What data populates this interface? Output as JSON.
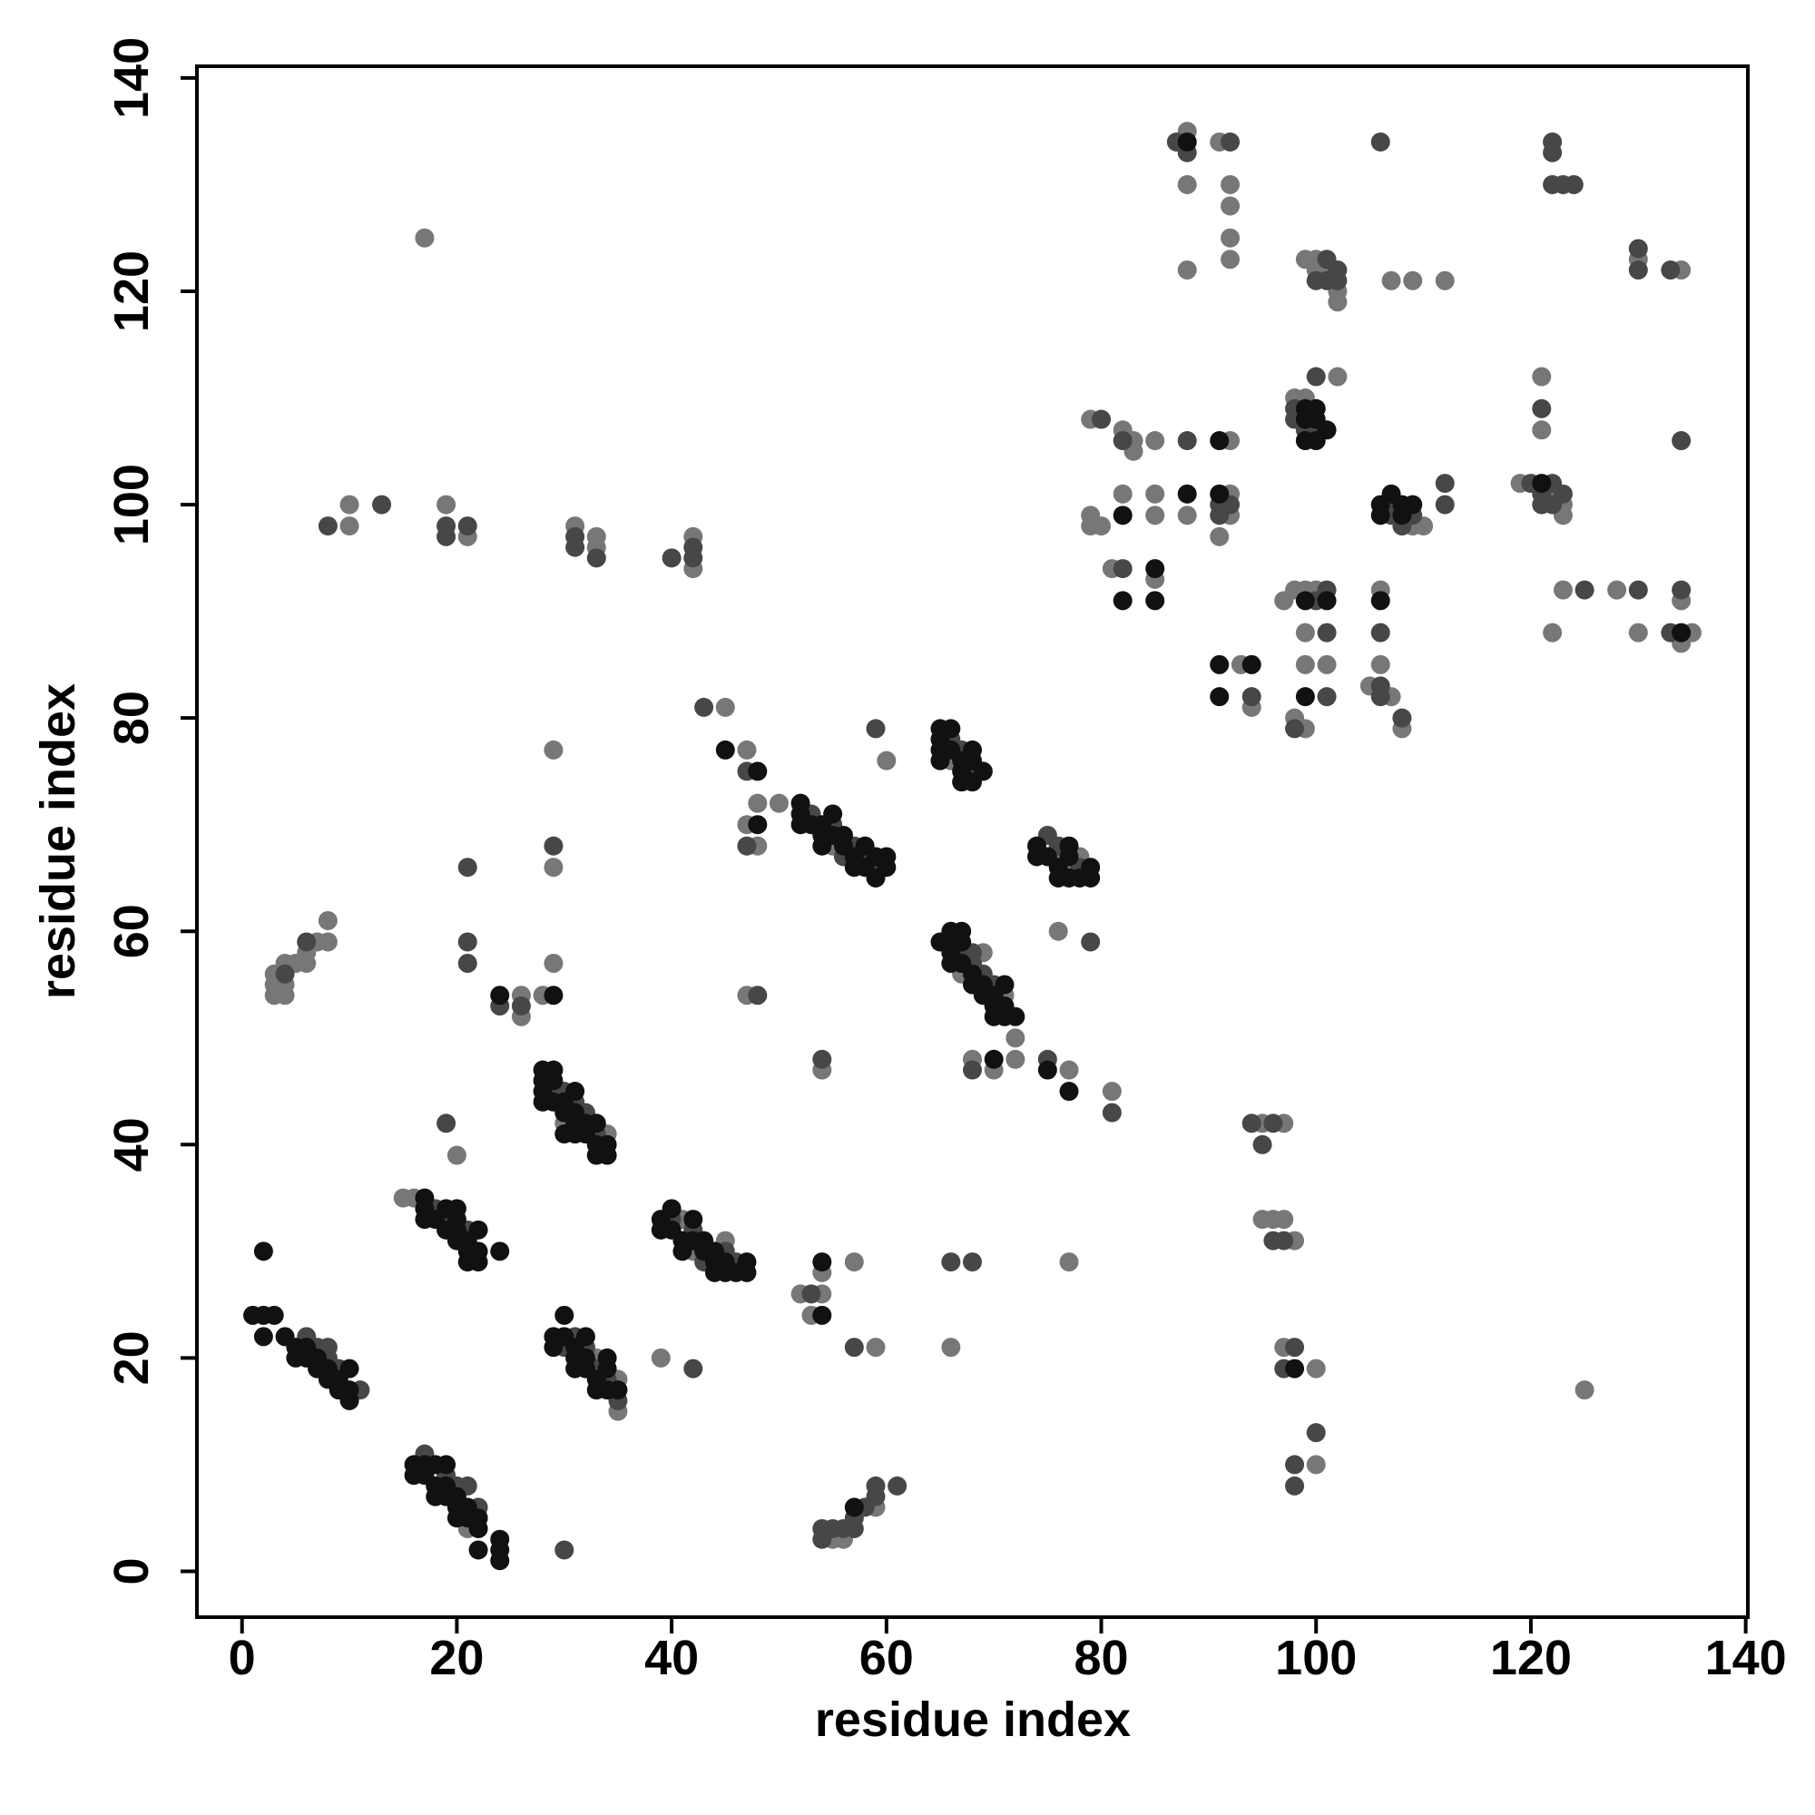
{
  "chart_data": {
    "type": "scatter",
    "xlabel": "residue index",
    "ylabel": "residue index",
    "xlim": [
      -4.2,
      140.2
    ],
    "ylim": [
      -4.3,
      141.1
    ],
    "xticks": [
      0,
      20,
      40,
      60,
      80,
      100,
      120,
      140
    ],
    "yticks": [
      0,
      20,
      40,
      60,
      80,
      100,
      120,
      140
    ],
    "series": [
      {
        "color": "#777777",
        "x": [
          21,
          15,
          16,
          34,
          30,
          35,
          35,
          33,
          41,
          42,
          45,
          50,
          55,
          66,
          67,
          69,
          71,
          76,
          77,
          78,
          55,
          56,
          59,
          3,
          3,
          4,
          4,
          3,
          4,
          5,
          6,
          6,
          7,
          8,
          8,
          17,
          10,
          10,
          19,
          21,
          31,
          33,
          33,
          42,
          42,
          45,
          47,
          48,
          47,
          48,
          60,
          29,
          29,
          26,
          26,
          28,
          29,
          47,
          54,
          20,
          39,
          52,
          53,
          54,
          54,
          57,
          59,
          66,
          77,
          68,
          70,
          72,
          72,
          77,
          76,
          81,
          95,
          97,
          95,
          96,
          97,
          98,
          97,
          100,
          100,
          125,
          93,
          94,
          97,
          98,
          99,
          100,
          99,
          99,
          101,
          98,
          99,
          106,
          106,
          105,
          107,
          108,
          79,
          82,
          83,
          83,
          85,
          92,
          79,
          79,
          80,
          82,
          85,
          85,
          88,
          92,
          92,
          91,
          81,
          85,
          88,
          88,
          88,
          91,
          92,
          92,
          92,
          92,
          130,
          134,
          99,
          100,
          100,
          101,
          102,
          102,
          107,
          109,
          112,
          98,
          99,
          102,
          109,
          110,
          119,
          122,
          123,
          123,
          121,
          121,
          123,
          128,
          122,
          130,
          134,
          135,
          134
        ],
        "values": [
          4,
          35,
          35,
          41,
          42,
          15,
          18,
          20,
          33,
          30,
          31,
          72,
          68,
          76,
          56,
          58,
          54,
          67,
          66,
          67,
          3,
          3,
          6,
          56,
          54,
          54,
          55,
          55,
          57,
          57,
          57,
          58,
          59,
          61,
          59,
          125,
          100,
          98,
          100,
          97,
          98,
          97,
          96,
          97,
          94,
          81,
          77,
          72,
          70,
          68,
          76,
          77,
          66,
          54,
          52,
          54,
          57,
          54,
          47,
          39,
          20,
          26,
          24,
          26,
          28,
          29,
          21,
          21,
          29,
          48,
          47,
          50,
          48,
          47,
          60,
          45,
          42,
          42,
          33,
          33,
          33,
          31,
          21,
          19,
          10,
          17,
          85,
          81,
          91,
          92,
          92,
          92,
          88,
          85,
          85,
          80,
          79,
          92,
          85,
          83,
          82,
          79,
          108,
          107,
          106,
          105,
          106,
          106,
          99,
          98,
          98,
          101,
          101,
          99,
          99,
          101,
          99,
          97,
          94,
          93,
          135,
          130,
          122,
          134,
          130,
          128,
          125,
          123,
          123,
          122,
          123,
          123,
          122,
          122,
          120,
          119,
          121,
          121,
          121,
          110,
          110,
          112,
          98,
          98,
          102,
          101,
          100,
          99,
          112,
          107,
          92,
          92,
          88,
          88,
          87,
          88,
          91
        ]
      },
      {
        "color": "#474747",
        "x": [
          6,
          7,
          8,
          8,
          9,
          11,
          17,
          19,
          20,
          21,
          22,
          18,
          19,
          21,
          29,
          30,
          31,
          32,
          33,
          30,
          31,
          32,
          33,
          34,
          35,
          40,
          42,
          43,
          45,
          46,
          53,
          55,
          56,
          57,
          58,
          59,
          66,
          67,
          68,
          67,
          68,
          69,
          70,
          68,
          75,
          76,
          78,
          54,
          54,
          55,
          56,
          57,
          57,
          58,
          59,
          59,
          61,
          4,
          6,
          8,
          13,
          19,
          19,
          21,
          31,
          31,
          33,
          40,
          42,
          42,
          43,
          47,
          47,
          59,
          29,
          21,
          21,
          21,
          24,
          26,
          48,
          54,
          19,
          42,
          30,
          53,
          57,
          66,
          68,
          68,
          75,
          79,
          81,
          94,
          96,
          95,
          96,
          97,
          98,
          97,
          100,
          98,
          98,
          94,
          100,
          101,
          101,
          101,
          98,
          106,
          106,
          106,
          108,
          80,
          82,
          88,
          91,
          91,
          92,
          82,
          87,
          88,
          92,
          106,
          122,
          122,
          122,
          123,
          124,
          130,
          130,
          133,
          100,
          101,
          101,
          102,
          102,
          98,
          98,
          99,
          100,
          100,
          107,
          107,
          108,
          109,
          112,
          112,
          120,
          121,
          121,
          122,
          122,
          123,
          121,
          125,
          130,
          133,
          134,
          134
        ],
        "values": [
          22,
          21,
          20,
          21,
          19,
          17,
          11,
          9,
          8,
          8,
          6,
          34,
          33,
          32,
          45,
          45,
          44,
          43,
          41,
          21,
          22,
          21,
          19,
          18,
          16,
          33,
          32,
          29,
          30,
          29,
          71,
          70,
          67,
          68,
          67,
          66,
          78,
          77,
          75,
          58,
          57,
          56,
          55,
          58,
          69,
          68,
          66,
          4,
          3,
          4,
          4,
          4,
          5,
          6,
          7,
          8,
          8,
          56,
          59,
          98,
          100,
          98,
          97,
          98,
          97,
          96,
          95,
          95,
          96,
          95,
          81,
          75,
          68,
          79,
          68,
          66,
          59,
          57,
          53,
          53,
          54,
          48,
          42,
          19,
          2,
          26,
          21,
          29,
          29,
          47,
          48,
          59,
          43,
          42,
          42,
          40,
          31,
          31,
          21,
          19,
          13,
          10,
          8,
          82,
          91,
          92,
          88,
          82,
          79,
          88,
          83,
          82,
          80,
          108,
          106,
          106,
          100,
          99,
          100,
          94,
          134,
          133,
          134,
          134,
          134,
          133,
          130,
          130,
          130,
          124,
          122,
          122,
          121,
          123,
          121,
          122,
          121,
          109,
          108,
          107,
          107,
          112,
          100,
          99,
          98,
          99,
          102,
          100,
          102,
          101,
          100,
          102,
          100,
          101,
          109,
          92,
          92,
          88,
          92,
          106
        ]
      },
      {
        "color": "#111111",
        "x": [
          1,
          2,
          3,
          2,
          4,
          5,
          5,
          6,
          6,
          7,
          7,
          8,
          8,
          9,
          9,
          10,
          10,
          10,
          2,
          16,
          16,
          17,
          17,
          18,
          18,
          18,
          19,
          19,
          19,
          20,
          20,
          20,
          21,
          21,
          22,
          22,
          22,
          24,
          24,
          24,
          17,
          17,
          17,
          18,
          19,
          19,
          20,
          20,
          20,
          20,
          21,
          21,
          21,
          22,
          22,
          22,
          24,
          28,
          29,
          28,
          28,
          28,
          29,
          29,
          30,
          30,
          31,
          31,
          31,
          32,
          32,
          33,
          33,
          33,
          34,
          34,
          30,
          31,
          30,
          29,
          29,
          30,
          31,
          31,
          31,
          32,
          32,
          33,
          33,
          34,
          34,
          34,
          35,
          32,
          39,
          39,
          40,
          40,
          41,
          41,
          42,
          42,
          43,
          43,
          44,
          44,
          45,
          45,
          46,
          47,
          47,
          44,
          52,
          52,
          53,
          54,
          54,
          55,
          55,
          56,
          56,
          57,
          57,
          58,
          58,
          59,
          59,
          60,
          60,
          52,
          54,
          65,
          65,
          65,
          65,
          66,
          66,
          67,
          67,
          67,
          68,
          68,
          68,
          69,
          65,
          66,
          66,
          66,
          67,
          67,
          67,
          68,
          68,
          69,
          69,
          70,
          70,
          70,
          71,
          71,
          71,
          72,
          66,
          74,
          74,
          75,
          76,
          76,
          77,
          77,
          78,
          79,
          79,
          77,
          45,
          48,
          48,
          24,
          29,
          54,
          54,
          70,
          75,
          77,
          98,
          91,
          94,
          91,
          99,
          101,
          99,
          106,
          91,
          82,
          88,
          91,
          85,
          82,
          85,
          88,
          99,
          99,
          99,
          100,
          100,
          100,
          101,
          106,
          106,
          107,
          108,
          108,
          109,
          121,
          134,
          57
        ],
        "values": [
          24,
          24,
          24,
          22,
          22,
          21,
          20,
          20,
          21,
          19,
          20,
          18,
          19,
          17,
          18,
          16,
          19,
          17,
          30,
          10,
          9,
          10,
          9,
          8,
          7,
          10,
          10,
          8,
          7,
          7,
          6,
          5,
          6,
          5,
          5,
          4,
          2,
          3,
          2,
          1,
          35,
          34,
          33,
          33,
          34,
          32,
          34,
          33,
          32,
          31,
          31,
          30,
          29,
          29,
          32,
          30,
          30,
          47,
          47,
          46,
          45,
          44,
          44,
          46,
          44,
          43,
          45,
          43,
          42,
          42,
          41,
          42,
          40,
          39,
          39,
          40,
          41,
          41,
          24,
          22,
          21,
          22,
          21,
          20,
          19,
          19,
          20,
          18,
          17,
          17,
          19,
          20,
          17,
          22,
          33,
          32,
          32,
          34,
          31,
          30,
          33,
          31,
          31,
          30,
          29,
          28,
          28,
          29,
          28,
          29,
          28,
          30,
          72,
          71,
          70,
          70,
          69,
          71,
          69,
          68,
          69,
          67,
          66,
          66,
          68,
          67,
          65,
          66,
          67,
          70,
          68,
          79,
          78,
          77,
          76,
          79,
          77,
          76,
          75,
          74,
          77,
          74,
          76,
          75,
          59,
          60,
          58,
          57,
          60,
          59,
          57,
          56,
          55,
          55,
          54,
          54,
          53,
          52,
          55,
          53,
          52,
          52,
          59,
          68,
          67,
          67,
          66,
          65,
          68,
          65,
          65,
          66,
          65,
          67,
          77,
          75,
          70,
          54,
          54,
          24,
          29,
          48,
          47,
          45,
          19,
          85,
          85,
          82,
          91,
          91,
          82,
          91,
          106,
          99,
          101,
          101,
          94,
          91,
          91,
          134,
          109,
          108,
          106,
          109,
          108,
          106,
          107,
          100,
          99,
          101,
          100,
          99,
          100,
          102,
          88,
          6
        ]
      }
    ]
  }
}
